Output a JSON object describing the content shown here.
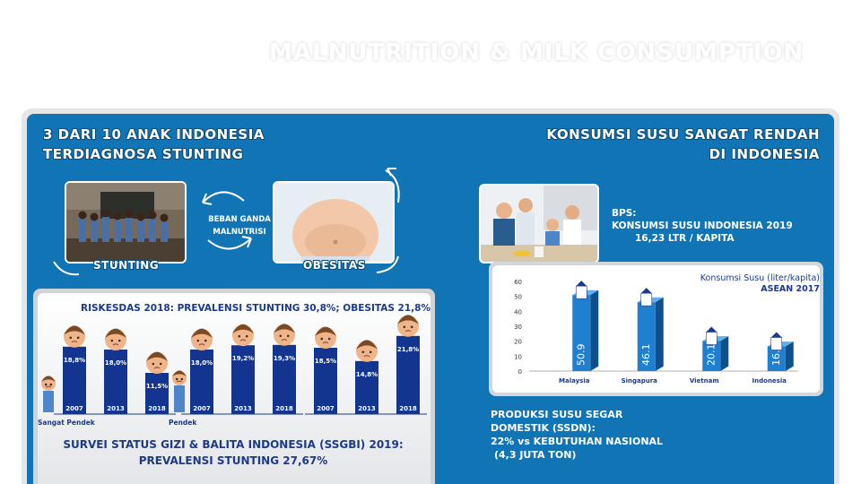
{
  "page": {
    "title": "MALNUTRITION & MILK CONSUMPTION"
  },
  "left": {
    "heading_line1": "3 DARI 10 ANAK INDONESIA",
    "heading_line2": "TERDIAGNOSA STUNTING",
    "photo_tags": {
      "stunting": "STUNTING",
      "obesitas": "OBESITAS"
    },
    "beban_line1": "BEBAN GANDA",
    "beban_line2": "MALNUTRISI",
    "riskesdas": "RISKESDAS 2018: PREVALENSI STUNTING 30,8%; OBESITAS 21,8%",
    "ssgbi_line1": "SURVEI STATUS GIZI & BALITA INDONESIA (SSGBI) 2019:",
    "ssgbi_line2": "PREVALENSI STUNTING 27,67%",
    "colors": {
      "bar": "#13358f",
      "skin": "#f0b489",
      "hair": "#7a4a24"
    }
  },
  "right": {
    "heading_line1": "KONSUMSI SUSU SANGAT RENDAH",
    "heading_line2": "DI INDONESIA",
    "bps_label": "BPS:",
    "bps_line1": "KONSUMSI SUSU INDONESIA 2019",
    "bps_line2": "16,23 LTR / KAPITA",
    "produksi_line1": "PRODUKSI SUSU SEGAR",
    "produksi_line2": "DOMESTIK (SSDN):",
    "produksi_line3": "22% vs KEBUTUHAN NASIONAL",
    "produksi_line4": "(4,3 JUTA TON)",
    "colors": {
      "bar_front": "#1f7fd0",
      "bar_side": "#0f4f8c",
      "bar_top": "#5eb0ef"
    }
  },
  "chart_data": [
    {
      "type": "bar",
      "title": "",
      "groups": [
        {
          "name": "Sangat Pendek",
          "categories": [
            "2007",
            "2013",
            "2018"
          ],
          "values": [
            18.8,
            18.0,
            11.5
          ],
          "value_labels": [
            "18,8%",
            "18,0%",
            "11,5%"
          ]
        },
        {
          "name": "Pendek",
          "categories": [
            "2007",
            "2013",
            "2018"
          ],
          "values": [
            18.0,
            19.2,
            19.3
          ],
          "value_labels": [
            "18,0%",
            "19,2%",
            "19,3%"
          ]
        },
        {
          "name": "",
          "categories": [
            "2007",
            "2013",
            "2018"
          ],
          "values": [
            18.5,
            14.8,
            21.8
          ],
          "value_labels": [
            "18,5%",
            "14,8%",
            "21,8%"
          ]
        }
      ]
    },
    {
      "type": "bar",
      "title": "Konsumsi Susu (liter/kapita)",
      "subtitle": "ASEAN 2017",
      "categories": [
        "Malaysia",
        "Singapura",
        "Vietnam",
        "Indonesia"
      ],
      "values": [
        50.9,
        46.1,
        20.1,
        16.5
      ],
      "value_labels": [
        "50.9",
        "46.1",
        "20.1",
        "16.5"
      ],
      "ylim": [
        0,
        60
      ],
      "yticks": [
        "0",
        "10",
        "20",
        "30",
        "40",
        "50",
        "60"
      ],
      "grid": false
    }
  ]
}
